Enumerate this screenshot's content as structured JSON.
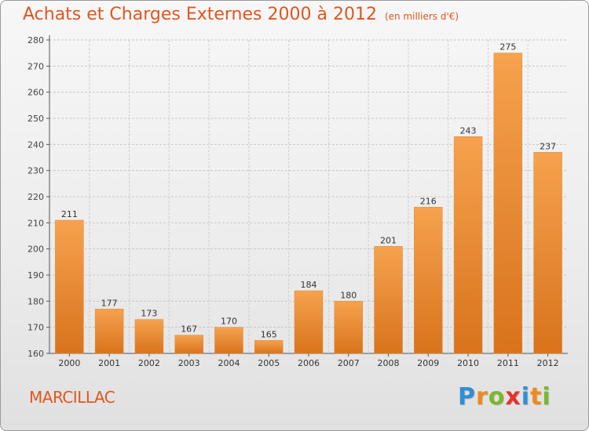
{
  "header": {
    "title": "Achats et Charges Externes 2000 à 2012",
    "subtitle": "(en milliers d'€)"
  },
  "footer": {
    "commune": "MARCILLAC",
    "logo_letters": [
      "P",
      "r",
      "o",
      "x",
      "i",
      "t",
      "i"
    ],
    "logo_colors": [
      "#2f8fd4",
      "#f08a1c",
      "#7ab929",
      "#e8312a",
      "#2f8fd4",
      "#f08a1c",
      "#7ab929"
    ]
  },
  "chart_data": {
    "type": "bar",
    "title": "Achats et Charges Externes 2000 à 2012",
    "subtitle": "(en milliers d'€)",
    "xlabel": "",
    "ylabel": "",
    "categories": [
      "2000",
      "2001",
      "2002",
      "2003",
      "2004",
      "2005",
      "2006",
      "2007",
      "2008",
      "2009",
      "2010",
      "2011",
      "2012"
    ],
    "values": [
      211,
      177,
      173,
      167,
      170,
      165,
      184,
      180,
      201,
      216,
      243,
      275,
      237
    ],
    "ylim": [
      160,
      280
    ],
    "yticks": [
      160,
      170,
      180,
      190,
      200,
      210,
      220,
      230,
      240,
      250,
      260,
      270,
      280
    ],
    "grid": true,
    "bar_color_top": "#f6a24e",
    "bar_color_bottom": "#d9731c"
  }
}
